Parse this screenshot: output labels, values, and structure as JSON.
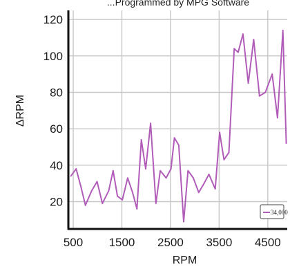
{
  "chart_data": {
    "type": "line",
    "title": "...Programmed by MPG Software",
    "xlabel": "RPM",
    "ylabel": "ΔRPM",
    "xlim": [
      400,
      4900
    ],
    "ylim": [
      5,
      125
    ],
    "x_ticks": [
      500,
      1500,
      2500,
      3500,
      4500
    ],
    "y_ticks": [
      20,
      40,
      60,
      80,
      100,
      120
    ],
    "grid": true,
    "legend_position": "bottom-right",
    "series": [
      {
        "name": "34,000",
        "color": "#b05cb8",
        "x": [
          450,
          560,
          660,
          750,
          880,
          990,
          1100,
          1230,
          1320,
          1410,
          1510,
          1620,
          1720,
          1810,
          1900,
          1990,
          2090,
          2200,
          2290,
          2410,
          2510,
          2580,
          2670,
          2770,
          2860,
          2970,
          3080,
          3190,
          3290,
          3420,
          3510,
          3600,
          3700,
          3810,
          3890,
          3990,
          4100,
          4210,
          4330,
          4450,
          4590,
          4700,
          4810,
          4880
        ],
        "y": [
          34,
          38,
          28,
          18,
          26,
          31,
          19,
          26,
          37,
          23,
          21,
          33,
          25,
          16,
          54,
          38,
          63,
          19,
          37,
          33,
          38,
          55,
          51,
          9,
          37,
          33,
          25,
          30,
          35,
          27,
          58,
          43,
          47,
          104,
          102,
          112,
          85,
          109,
          78,
          80,
          90,
          66,
          114,
          52
        ]
      }
    ]
  }
}
